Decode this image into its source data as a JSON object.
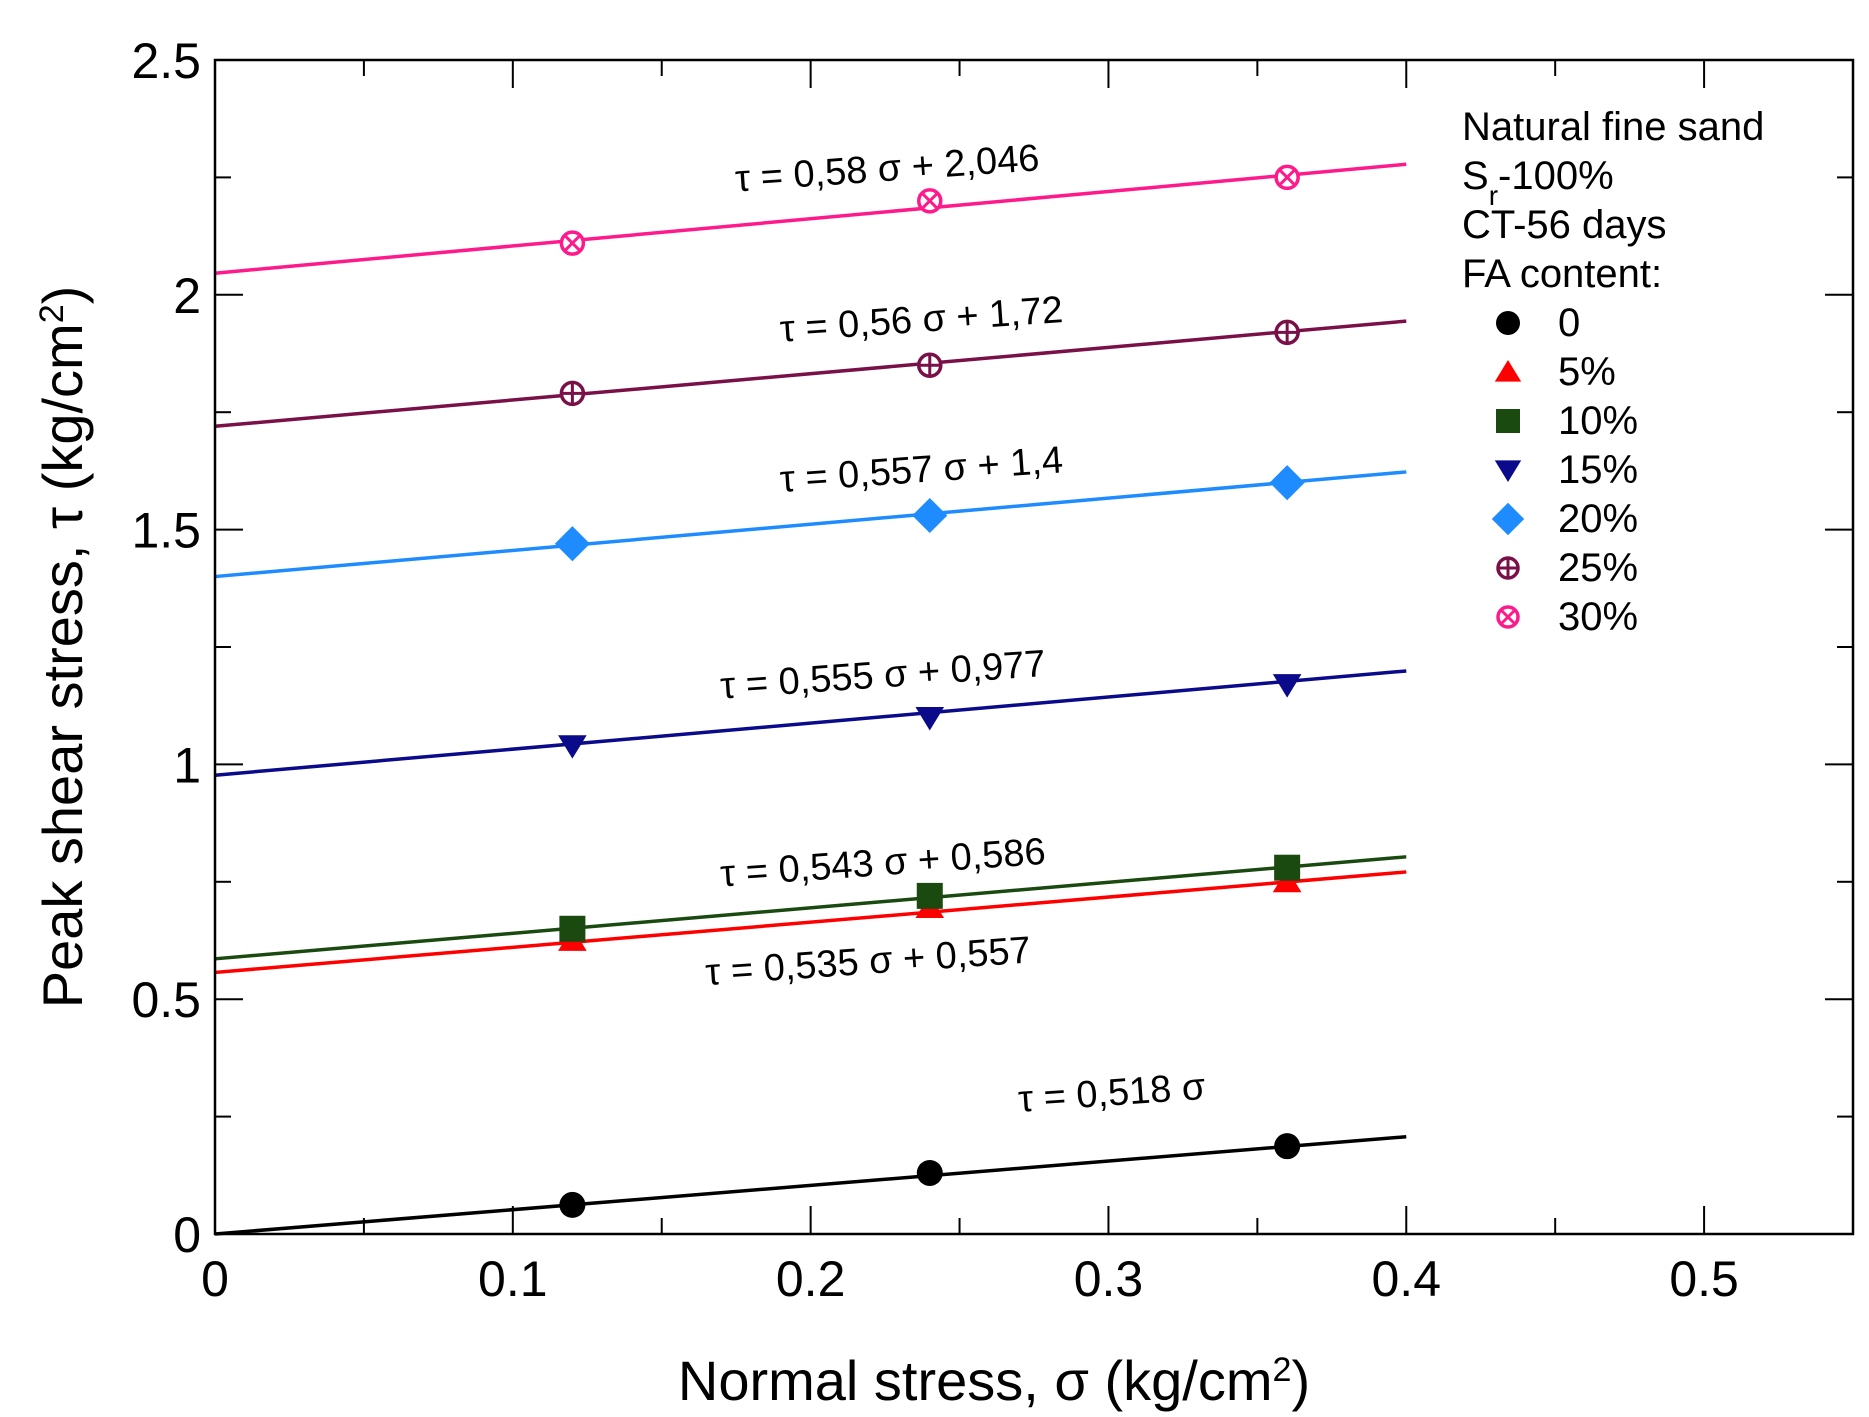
{
  "chart_data": {
    "type": "scatter",
    "xlabel": "Normal stress, σ (kg/cm",
    "xlabel_sup": "2",
    "xlabel_end": ")",
    "ylabel": "Peak shear stress, τ (kg/cm",
    "ylabel_sup": "2",
    "ylabel_end": ")",
    "xlim": [
      0,
      0.55
    ],
    "ylim": [
      0,
      2.5
    ],
    "x_major_ticks": [
      0,
      0.1,
      0.2,
      0.3,
      0.4,
      0.5
    ],
    "x_tick_labels": [
      "0",
      "0.1",
      "0.2",
      "0.3",
      "0.4",
      "0.5"
    ],
    "x_minor_ticks": [
      0.05,
      0.15,
      0.25,
      0.35,
      0.45,
      0.55
    ],
    "y_major_ticks": [
      0,
      0.5,
      1,
      1.5,
      2,
      2.5
    ],
    "y_tick_labels": [
      "0",
      "0.5",
      "1",
      "1.5",
      "2",
      "2.5"
    ],
    "y_minor_ticks": [
      0.25,
      0.75,
      1.25,
      1.75,
      2.25
    ],
    "fit_x_range": [
      0,
      0.4
    ],
    "legend": {
      "position": "top-right",
      "title_lines": [
        "Natural fine sand",
        "CT-56 days",
        "FA content:"
      ],
      "sr_main": "S",
      "sr_sub": "r",
      "sr_rest": "-100%"
    },
    "series": [
      {
        "name": "0",
        "marker": "circle",
        "color": "#000000",
        "slope": 0.518,
        "intercept": 0,
        "x": [
          0.12,
          0.24,
          0.36
        ],
        "y": [
          0.062,
          0.13,
          0.187
        ],
        "equation": "τ = 0,518 σ",
        "eq_anchor": [
          0.27,
          0.26
        ],
        "eq_angle": -4
      },
      {
        "name": "5%",
        "marker": "triangle-up",
        "color": "#ff0000",
        "slope": 0.535,
        "intercept": 0.557,
        "x": [
          0.12,
          0.24,
          0.36
        ],
        "y": [
          0.625,
          0.695,
          0.75
        ],
        "equation": "τ = 0,535 σ + 0,557",
        "eq_anchor": [
          0.165,
          0.53
        ],
        "eq_angle": -4
      },
      {
        "name": "10%",
        "marker": "square",
        "color": "#1a4a10",
        "slope": 0.543,
        "intercept": 0.586,
        "x": [
          0.12,
          0.24,
          0.36
        ],
        "y": [
          0.65,
          0.72,
          0.78
        ],
        "equation": "τ = 0,543 σ + 0,586",
        "eq_anchor": [
          0.17,
          0.74
        ],
        "eq_angle": -4
      },
      {
        "name": "15%",
        "marker": "triangle-down",
        "color": "#0a0a8a",
        "slope": 0.555,
        "intercept": 0.977,
        "x": [
          0.12,
          0.24,
          0.36
        ],
        "y": [
          1.04,
          1.1,
          1.17
        ],
        "equation": "τ = 0,555 σ + 0,977",
        "eq_anchor": [
          0.17,
          1.14
        ],
        "eq_angle": -4
      },
      {
        "name": "20%",
        "marker": "diamond",
        "color": "#1e8cff",
        "slope": 0.557,
        "intercept": 1.4,
        "x": [
          0.12,
          0.24,
          0.36
        ],
        "y": [
          1.47,
          1.53,
          1.6
        ],
        "equation": "τ = 0,557 σ + 1,4",
        "eq_anchor": [
          0.19,
          1.58
        ],
        "eq_angle": -4
      },
      {
        "name": "25%",
        "marker": "circle-plus",
        "color": "#7a1048",
        "slope": 0.56,
        "intercept": 1.72,
        "x": [
          0.12,
          0.24,
          0.36
        ],
        "y": [
          1.79,
          1.85,
          1.92
        ],
        "equation": "τ = 0,56 σ + 1,72",
        "eq_anchor": [
          0.19,
          1.9
        ],
        "eq_angle": -4
      },
      {
        "name": "30%",
        "marker": "circle-x",
        "color": "#ff1a8c",
        "slope": 0.58,
        "intercept": 2.046,
        "x": [
          0.12,
          0.24,
          0.36
        ],
        "y": [
          2.11,
          2.2,
          2.25
        ],
        "equation": "τ = 0,58 σ + 2,046",
        "eq_anchor": [
          0.175,
          2.22
        ],
        "eq_angle": -4
      }
    ]
  }
}
